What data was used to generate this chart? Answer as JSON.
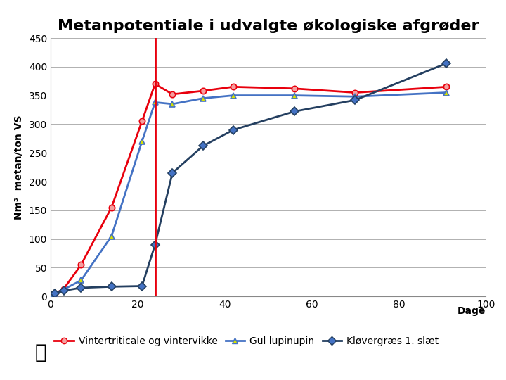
{
  "title": "Metanpotentiale i udvalgte økologiske afgrøder",
  "ylabel": "Nm³  metan/ton VS",
  "xlabel": "Dage",
  "ylim": [
    0,
    450
  ],
  "xlim": [
    0,
    100
  ],
  "yticks": [
    0,
    50,
    100,
    150,
    200,
    250,
    300,
    350,
    400,
    450
  ],
  "xticks": [
    0,
    20,
    40,
    60,
    80,
    100
  ],
  "vline_x": 24,
  "series": [
    {
      "name": "Vintertriticale og vintervikke",
      "color": "#e8000d",
      "marker": "o",
      "markerface": "#f4a0a0",
      "x": [
        0,
        1,
        3,
        7,
        14,
        21,
        24,
        28,
        35,
        42,
        56,
        70,
        91
      ],
      "y": [
        2,
        5,
        13,
        55,
        155,
        305,
        370,
        352,
        358,
        365,
        362,
        355,
        365
      ]
    },
    {
      "name": "Gul lupinupin",
      "color": "#4472c4",
      "marker": "^",
      "markerface": "#d4e000",
      "x": [
        0,
        1,
        3,
        7,
        14,
        21,
        24,
        28,
        35,
        42,
        56,
        70,
        91
      ],
      "y": [
        2,
        5,
        12,
        28,
        105,
        270,
        338,
        335,
        345,
        350,
        350,
        348,
        355
      ]
    },
    {
      "name": "Kløvergræs 1. slæt",
      "color": "#243f60",
      "marker": "D",
      "markerface": "#4472c4",
      "x": [
        0,
        1,
        3,
        7,
        14,
        21,
        24,
        28,
        35,
        42,
        56,
        70,
        91
      ],
      "y": [
        3,
        5,
        10,
        15,
        17,
        18,
        90,
        215,
        262,
        290,
        322,
        342,
        406
      ]
    }
  ],
  "fig_bg_color": "#ffffff",
  "footer_bg_color": "#e8e0c8",
  "plot_bg_color": "#ffffff",
  "grid_color": "#b0b0b0",
  "title_fontsize": 16,
  "axis_label_fontsize": 10,
  "tick_fontsize": 10,
  "legend_fontsize": 10
}
